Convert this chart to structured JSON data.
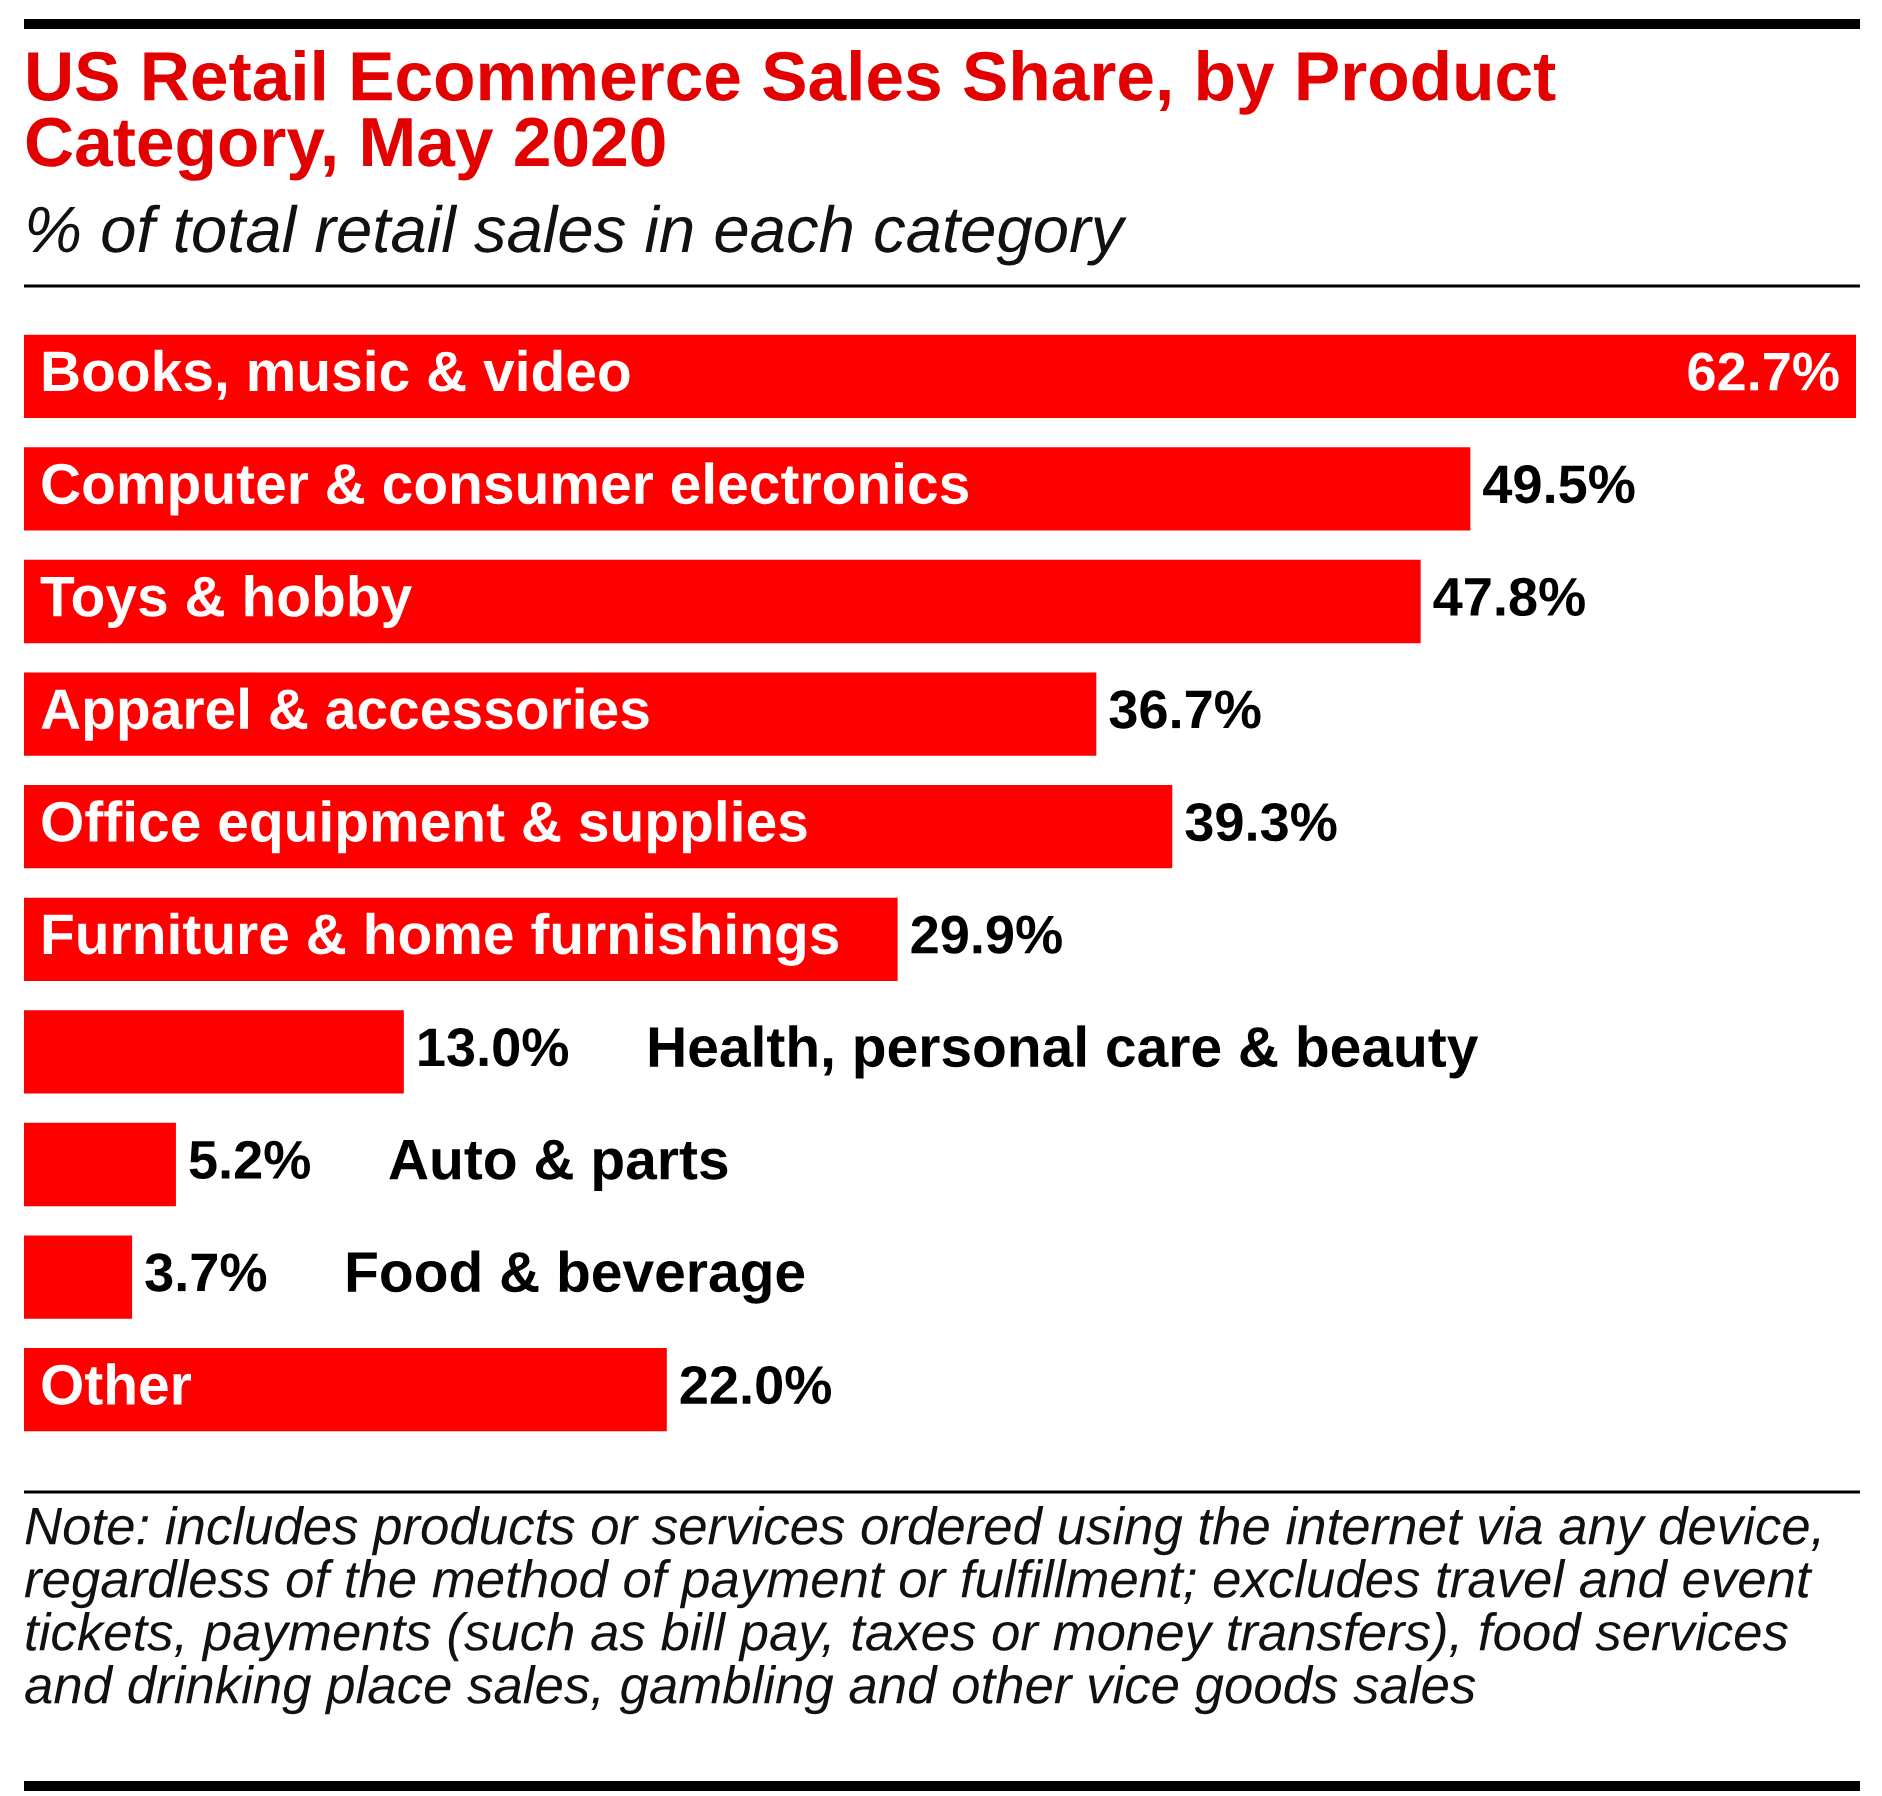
{
  "chart_data": {
    "type": "bar",
    "orientation": "horizontal",
    "title": "US Retail Ecommerce Sales Share, by Product Category, May 2020",
    "subtitle": "% of total retail sales in each category",
    "categories": [
      "Books, music & video",
      "Computer & consumer electronics",
      "Toys & hobby",
      "Apparel & accessories",
      "Office equipment & supplies",
      "Furniture & home furnishings",
      "Health, personal care & beauty",
      "Auto & parts",
      "Food & beverage",
      "Other"
    ],
    "values": [
      62.7,
      49.5,
      47.8,
      36.7,
      39.3,
      29.9,
      13.0,
      5.2,
      3.7,
      22.0
    ],
    "value_labels": [
      "62.7%",
      "49.5%",
      "47.8%",
      "36.7%",
      "39.3%",
      "29.9%",
      "13.0%",
      "5.2%",
      "3.7%",
      "22.0%"
    ],
    "color": "#ff0000",
    "tick_labels": false,
    "annotations": [
      "Note: includes products or services ordered using the internet via any device, regardless of the method of payment or fulfillment; excludes travel and event tickets, payments (such as bill pay, taxes or money transfers), food services and drinking place sales, gambling and other vice goods sales"
    ]
  }
}
